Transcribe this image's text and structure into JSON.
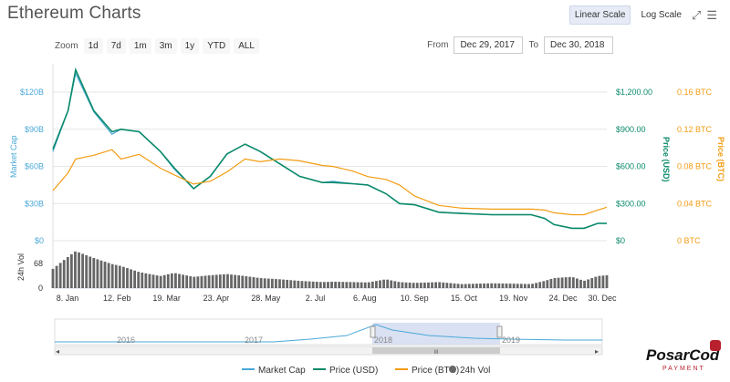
{
  "title": "Ethereum Charts",
  "scale_buttons": {
    "linear": "Linear Scale",
    "log": "Log Scale"
  },
  "zoom": {
    "label": "Zoom",
    "buttons": [
      "1d",
      "7d",
      "1m",
      "3m",
      "1y",
      "YTD",
      "ALL"
    ]
  },
  "range": {
    "from_label": "From",
    "from_value": "Dec 29, 2017",
    "to_label": "To",
    "to_value": "Dec 30, 2018"
  },
  "colors": {
    "market_cap": "#4aa8d8",
    "price_usd": "#0b8a6a",
    "price_btc": "#f39c12",
    "volume": "#666666",
    "navigator_fill": "#c9d4ec"
  },
  "chart_data": {
    "type": "line",
    "axes": {
      "left": {
        "label": "Market Cap",
        "ticks": [
          "$0",
          "$30B",
          "$60B",
          "$90B",
          "$120B"
        ],
        "range": [
          0,
          120
        ]
      },
      "right_usd": {
        "label": "Price (USD)",
        "ticks": [
          "$0",
          "$300.00",
          "$600.00",
          "$900.00",
          "$1,200.00"
        ],
        "range": [
          0,
          1200
        ]
      },
      "right_btc": {
        "label": "Price (BTC)",
        "ticks": [
          "0 BTC",
          "0.04 BTC",
          "0.08 BTC",
          "0.12 BTC",
          "0.16 BTC"
        ],
        "range": [
          0,
          0.16
        ]
      },
      "volume": {
        "label": "24h Vol",
        "ticks": [
          "0",
          "68"
        ]
      },
      "x_ticks": [
        "8. Jan",
        "12. Feb",
        "19. Mar",
        "23. Apr",
        "28. May",
        "2. Jul",
        "6. Aug",
        "10. Sep",
        "15. Oct",
        "19. Nov",
        "24. Dec",
        "30. Dec"
      ]
    },
    "x": [
      "2017-12-29",
      "2018-01-08",
      "2018-01-13",
      "2018-01-25",
      "2018-02-06",
      "2018-02-12",
      "2018-02-24",
      "2018-03-10",
      "2018-03-19",
      "2018-04-01",
      "2018-04-12",
      "2018-04-23",
      "2018-05-05",
      "2018-05-15",
      "2018-05-28",
      "2018-06-10",
      "2018-06-25",
      "2018-07-02",
      "2018-07-15",
      "2018-07-25",
      "2018-08-06",
      "2018-08-15",
      "2018-08-25",
      "2018-09-10",
      "2018-09-25",
      "2018-10-15",
      "2018-10-30",
      "2018-11-10",
      "2018-11-19",
      "2018-11-25",
      "2018-12-07",
      "2018-12-15",
      "2018-12-24",
      "2018-12-30"
    ],
    "series": [
      {
        "name": "Market Cap",
        "axis": "left",
        "values": [
          72,
          105,
          135,
          104,
          86,
          90,
          88,
          72,
          58,
          42,
          52,
          70,
          78,
          72,
          62,
          52,
          47,
          48,
          46,
          45,
          38,
          30,
          29,
          23,
          22,
          21,
          21,
          21,
          18,
          13,
          10,
          10,
          14,
          14
        ]
      },
      {
        "name": "Price (USD)",
        "axis": "right_usd",
        "values": [
          740,
          1050,
          1380,
          1050,
          880,
          900,
          880,
          720,
          590,
          420,
          520,
          700,
          780,
          720,
          620,
          520,
          470,
          470,
          460,
          450,
          380,
          300,
          290,
          230,
          220,
          210,
          210,
          210,
          180,
          130,
          100,
          100,
          140,
          140
        ]
      },
      {
        "name": "Price (BTC)",
        "axis": "right_btc",
        "values": [
          0.054,
          0.073,
          0.088,
          0.092,
          0.098,
          0.088,
          0.093,
          0.078,
          0.071,
          0.061,
          0.064,
          0.074,
          0.088,
          0.085,
          0.088,
          0.086,
          0.081,
          0.08,
          0.075,
          0.069,
          0.066,
          0.06,
          0.048,
          0.038,
          0.035,
          0.034,
          0.034,
          0.034,
          0.033,
          0.03,
          0.028,
          0.028,
          0.033,
          0.036
        ]
      },
      {
        "name": "24h Vol",
        "axis": "volume",
        "values": [
          48,
          78,
          92,
          75,
          60,
          55,
          40,
          30,
          38,
          28,
          32,
          35,
          30,
          25,
          22,
          18,
          15,
          16,
          15,
          14,
          22,
          15,
          13,
          15,
          10,
          12,
          11,
          10,
          18,
          25,
          28,
          18,
          30,
          32
        ]
      }
    ],
    "navigator": {
      "labels": [
        "2016",
        "2017",
        "2018",
        "2019"
      ],
      "selected": [
        "Dec 29, 2017",
        "Dec 30, 2018"
      ]
    },
    "legend": [
      "Market Cap",
      "Price (USD)",
      "Price (BTC)",
      "24h Vol"
    ]
  },
  "logo": {
    "line1": "PosarCod",
    "line2": "PAYMENT"
  }
}
